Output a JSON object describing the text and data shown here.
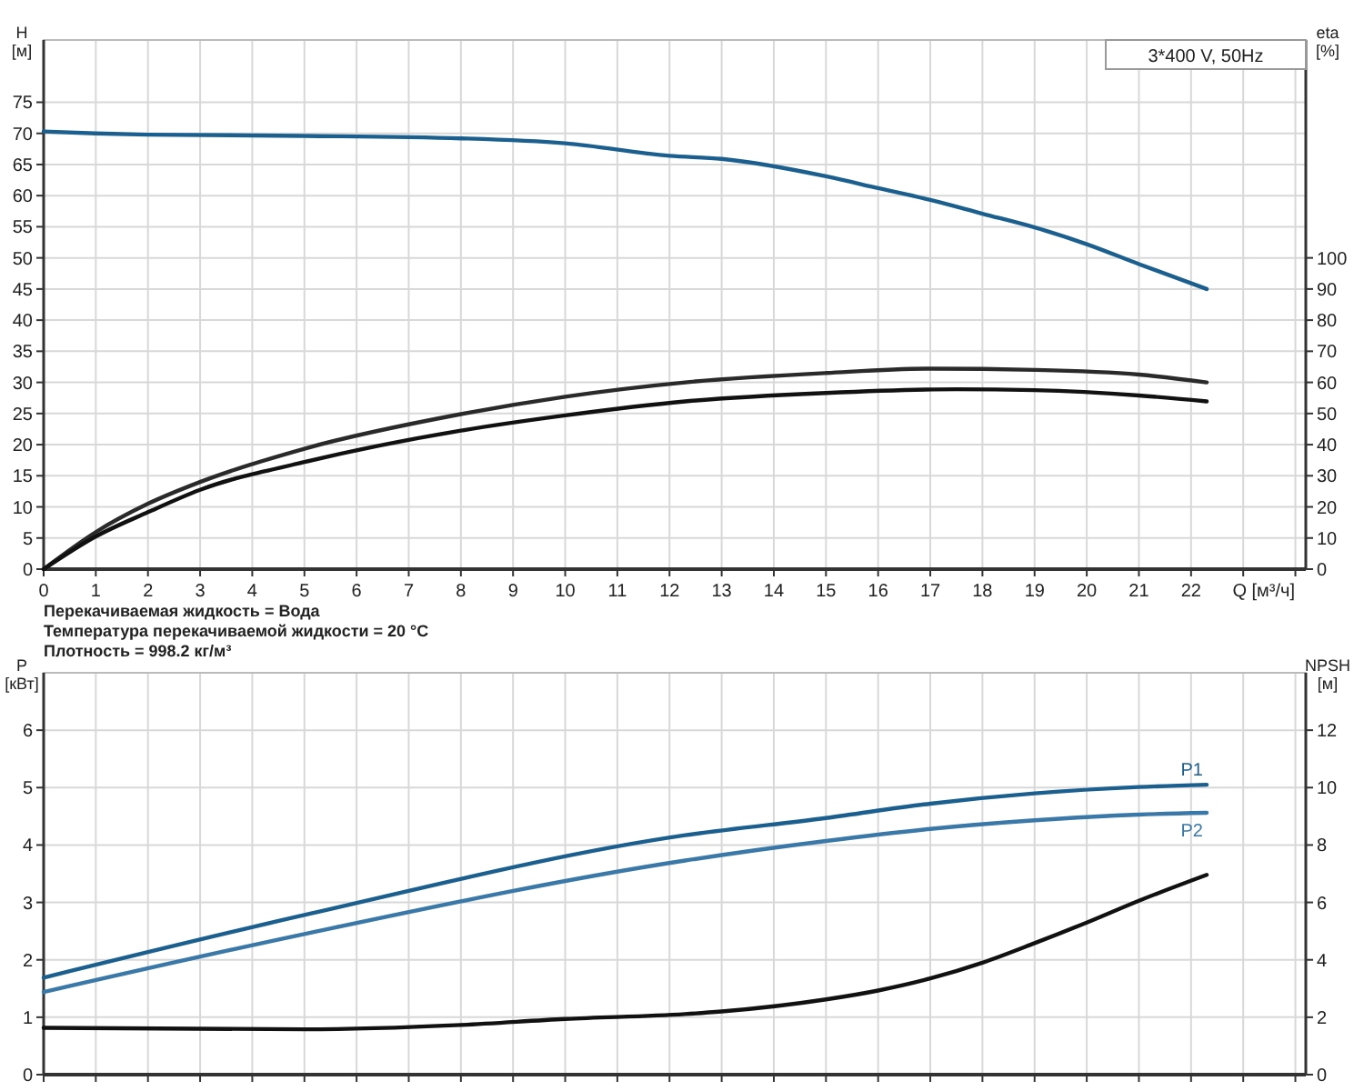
{
  "chart_data": [
    {
      "type": "line",
      "xlabel": "Q [м³/ч]",
      "ylabel": "H\n[м]",
      "y2label": "eta\n[%]",
      "xlim": [
        0,
        24.2
      ],
      "ylim": [
        0,
        85
      ],
      "y2lim": [
        0,
        170
      ],
      "xticks": [
        0,
        1,
        2,
        3,
        4,
        5,
        6,
        7,
        8,
        9,
        10,
        11,
        12,
        13,
        14,
        15,
        16,
        17,
        18,
        19,
        20,
        21,
        22,
        {
          "value": 23,
          "label": null
        },
        {
          "value": 24,
          "label": null
        }
      ],
      "yticks": [
        0,
        5,
        10,
        15,
        20,
        25,
        30,
        35,
        40,
        45,
        50,
        55,
        60,
        65,
        70,
        75
      ],
      "y2ticks": [
        0,
        10,
        20,
        30,
        40,
        50,
        60,
        70,
        80,
        90,
        100
      ],
      "grid": true,
      "series": [
        {
          "color": "#1b5f8f",
          "x": [
            0,
            1,
            2,
            5,
            8,
            10,
            12,
            13,
            15,
            16,
            17,
            18,
            19,
            20,
            21,
            22.3
          ],
          "values": [
            70.3,
            70,
            69.8,
            69.6,
            69.2,
            68.4,
            66.4,
            65.9,
            63.1,
            61.2,
            59.3,
            57.1,
            54.9,
            52.2,
            49,
            45
          ]
        },
        {
          "color": "#2a2a2a",
          "axis": "y2",
          "x": [
            0,
            1,
            2,
            3,
            5,
            8,
            10,
            12.3,
            15,
            17,
            19,
            21,
            22.3
          ],
          "values": [
            0,
            11.9,
            21,
            28,
            38.7,
            49.8,
            55.4,
            60,
            63,
            64.4,
            64,
            62.5,
            60
          ]
        },
        {
          "color": "#111111",
          "axis": "y2",
          "x": [
            0,
            1,
            2,
            3,
            5,
            8,
            10,
            12.3,
            15,
            17.5,
            19,
            21,
            22.3
          ],
          "values": [
            0,
            10.5,
            18.3,
            25.5,
            34.4,
            44.5,
            49.4,
            53.9,
            56.6,
            57.8,
            57.5,
            55.8,
            53.9
          ]
        }
      ],
      "annotations": [
        "3*400 V, 50Hz",
        "Перекачиваемая жидкость = Вода",
        "Температура перекачиваемой жидкости = 20 °C",
        "Плотность = 998.2 кг/м³"
      ]
    },
    {
      "type": "line",
      "ylabel": "P\n[кВт]",
      "y2label": "NPSH\n[м]",
      "xlim": [
        0,
        24.2
      ],
      "ylim": [
        0,
        7
      ],
      "y2lim": [
        0,
        14
      ],
      "tick_labels": "y",
      "xticks": [
        0,
        1,
        2,
        3,
        4,
        5,
        6,
        7,
        8,
        9,
        10,
        11,
        12,
        13,
        14,
        15,
        16,
        17,
        18,
        19,
        20,
        21,
        22,
        23,
        24
      ],
      "yticks": [
        0,
        1,
        2,
        3,
        4,
        5,
        6
      ],
      "y2ticks": [
        0,
        2,
        4,
        6,
        8,
        10,
        12
      ],
      "grid": true,
      "series": [
        {
          "name": "P1",
          "color": "#1b5f8f",
          "x": [
            0,
            5,
            12.3,
            15,
            17,
            19,
            21,
            22.3
          ],
          "values": [
            1.69,
            2.78,
            4.17,
            4.47,
            4.72,
            4.9,
            5.01,
            5.05
          ]
        },
        {
          "name": "P2",
          "color": "#3a78a8",
          "x": [
            0,
            5,
            12.3,
            15,
            17,
            19,
            21,
            22.3
          ],
          "values": [
            1.44,
            2.45,
            3.73,
            4.07,
            4.28,
            4.43,
            4.53,
            4.56
          ]
        },
        {
          "color": "#111111",
          "axis": "y2",
          "x": [
            0,
            5,
            8,
            10,
            12.3,
            13,
            15,
            16,
            17,
            18,
            19,
            20,
            21,
            22.3
          ],
          "values": [
            1.63,
            1.58,
            1.73,
            1.94,
            2.11,
            2.2,
            2.62,
            2.93,
            3.35,
            3.9,
            4.58,
            5.3,
            6.06,
            6.96
          ]
        }
      ]
    }
  ]
}
